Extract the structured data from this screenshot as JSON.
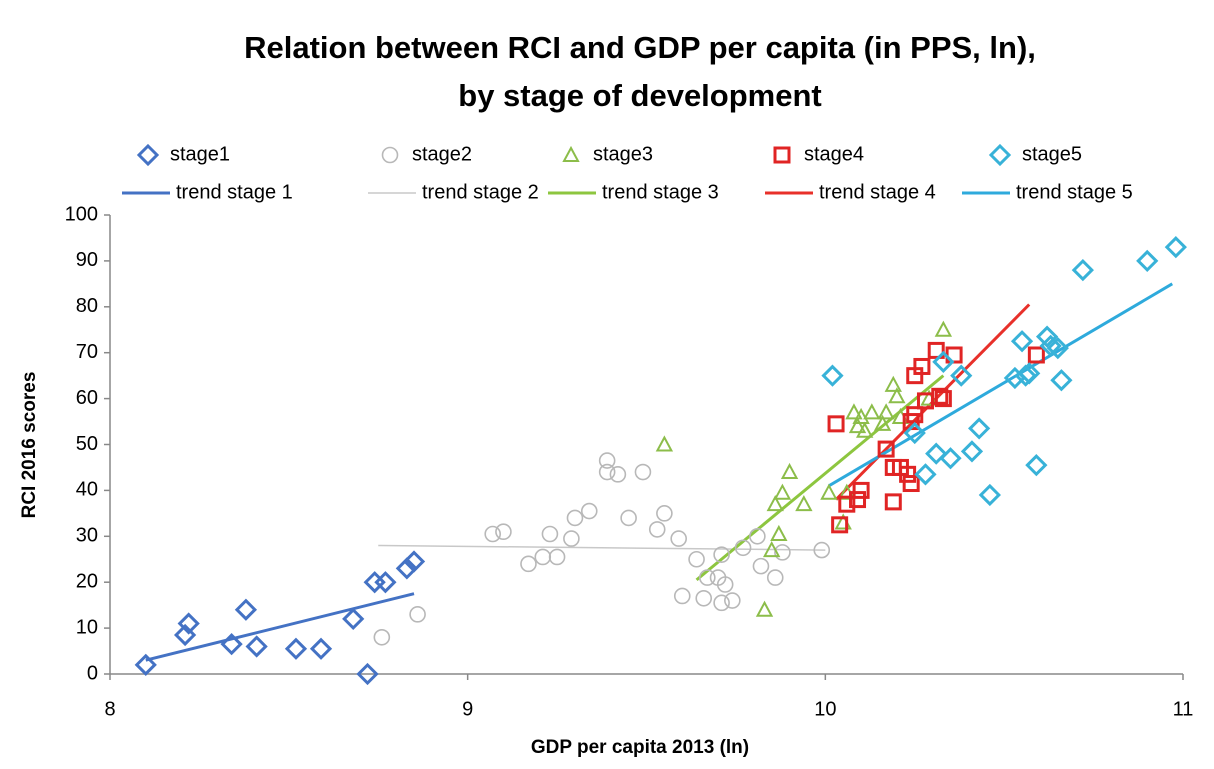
{
  "chart_data": {
    "type": "scatter",
    "title": [
      "Relation between RCI and GDP per capita (in PPS, ln),",
      "by stage of development"
    ],
    "x_label": "GDP per capita 2013 (ln)",
    "y_label": "RCI 2016 scores",
    "xlim": [
      8,
      11
    ],
    "xticks": [
      8,
      9,
      10,
      11
    ],
    "ylim": [
      0,
      100
    ],
    "yticks": [
      0,
      10,
      20,
      30,
      40,
      50,
      60,
      70,
      80,
      90,
      100
    ],
    "grid": false,
    "legend": "top",
    "series": [
      {
        "name": "stage1",
        "color": "#4472c4",
        "marker": "diamond",
        "x": [
          8.1,
          8.21,
          8.22,
          8.34,
          8.38,
          8.41,
          8.52,
          8.59,
          8.68,
          8.72,
          8.74,
          8.77,
          8.83,
          8.85
        ],
        "values": [
          2,
          8.5,
          11,
          6.5,
          14,
          6,
          5.5,
          5.5,
          12,
          0,
          20,
          20,
          23,
          24.5
        ]
      },
      {
        "name": "stage2",
        "color": "#b8b8b8",
        "marker": "circle",
        "x": [
          8.76,
          8.86,
          9.07,
          9.1,
          9.17,
          9.21,
          9.23,
          9.25,
          9.29,
          9.3,
          9.34,
          9.39,
          9.39,
          9.42,
          9.45,
          9.49,
          9.53,
          9.55,
          9.59,
          9.6,
          9.64,
          9.66,
          9.67,
          9.7,
          9.71,
          9.71,
          9.72,
          9.74,
          9.77,
          9.81,
          9.82,
          9.86,
          9.88,
          9.99
        ],
        "values": [
          8,
          13,
          30.5,
          31,
          24,
          25.5,
          30.5,
          25.5,
          29.5,
          34,
          35.5,
          46.5,
          44,
          43.5,
          34,
          44,
          31.5,
          35,
          29.5,
          17,
          25,
          16.5,
          21,
          21,
          26,
          15.5,
          19.5,
          16,
          27.5,
          30,
          23.5,
          21,
          26.5,
          27
        ]
      },
      {
        "name": "stage3",
        "color": "#8cbd4a",
        "marker": "triangle",
        "x": [
          9.55,
          9.83,
          9.85,
          9.86,
          9.87,
          9.88,
          9.9,
          9.94,
          10.01,
          10.05,
          10.06,
          10.08,
          10.09,
          10.1,
          10.11,
          10.13,
          10.16,
          10.17,
          10.19,
          10.2,
          10.21,
          10.29,
          10.33
        ],
        "values": [
          50,
          14,
          27,
          37,
          30.5,
          39.5,
          44,
          37,
          39.5,
          33,
          39.5,
          57,
          54,
          56,
          53,
          57,
          54.5,
          57,
          63,
          60.5,
          56,
          60,
          75
        ]
      },
      {
        "name": "stage4",
        "color": "#e02424",
        "marker": "square",
        "x": [
          10.03,
          10.04,
          10.06,
          10.09,
          10.1,
          10.17,
          10.19,
          10.19,
          10.21,
          10.23,
          10.24,
          10.24,
          10.25,
          10.25,
          10.27,
          10.28,
          10.31,
          10.32,
          10.33,
          10.36,
          10.59
        ],
        "values": [
          54.5,
          32.5,
          37,
          38,
          40,
          49,
          45,
          37.5,
          45,
          43.5,
          41.5,
          55,
          56.5,
          65,
          67,
          59.5,
          70.5,
          60.5,
          60,
          69.5,
          69.5
        ]
      },
      {
        "name": "stage5",
        "color": "#38b2d8",
        "marker": "diamond",
        "x": [
          10.02,
          10.25,
          10.28,
          10.31,
          10.33,
          10.35,
          10.38,
          10.41,
          10.43,
          10.46,
          10.53,
          10.55,
          10.56,
          10.57,
          10.59,
          10.62,
          10.63,
          10.65,
          10.66,
          10.72,
          10.9,
          10.98
        ],
        "values": [
          65,
          52.5,
          43.5,
          48,
          68,
          47,
          65,
          48.5,
          53.5,
          39,
          64.5,
          72.5,
          65,
          65.5,
          45.5,
          73.5,
          71.5,
          71,
          64,
          88,
          90,
          93
        ]
      }
    ],
    "trends": [
      {
        "name": "trend stage 1",
        "color": "#4472c4",
        "x": [
          8.1,
          8.85
        ],
        "values": [
          3,
          17.5
        ]
      },
      {
        "name": "trend stage 2",
        "color": "#c8c8c8",
        "x": [
          8.75,
          10.0
        ],
        "values": [
          28,
          27
        ]
      },
      {
        "name": "trend stage 3",
        "color": "#8dc63f",
        "x": [
          9.64,
          10.33
        ],
        "values": [
          20.5,
          65
        ]
      },
      {
        "name": "trend stage 4",
        "color": "#e8302a",
        "x": [
          10.03,
          10.57
        ],
        "values": [
          38,
          80.5
        ]
      },
      {
        "name": "trend stage 5",
        "color": "#2eaadc",
        "x": [
          10.01,
          10.97
        ],
        "values": [
          41,
          85
        ]
      }
    ]
  }
}
